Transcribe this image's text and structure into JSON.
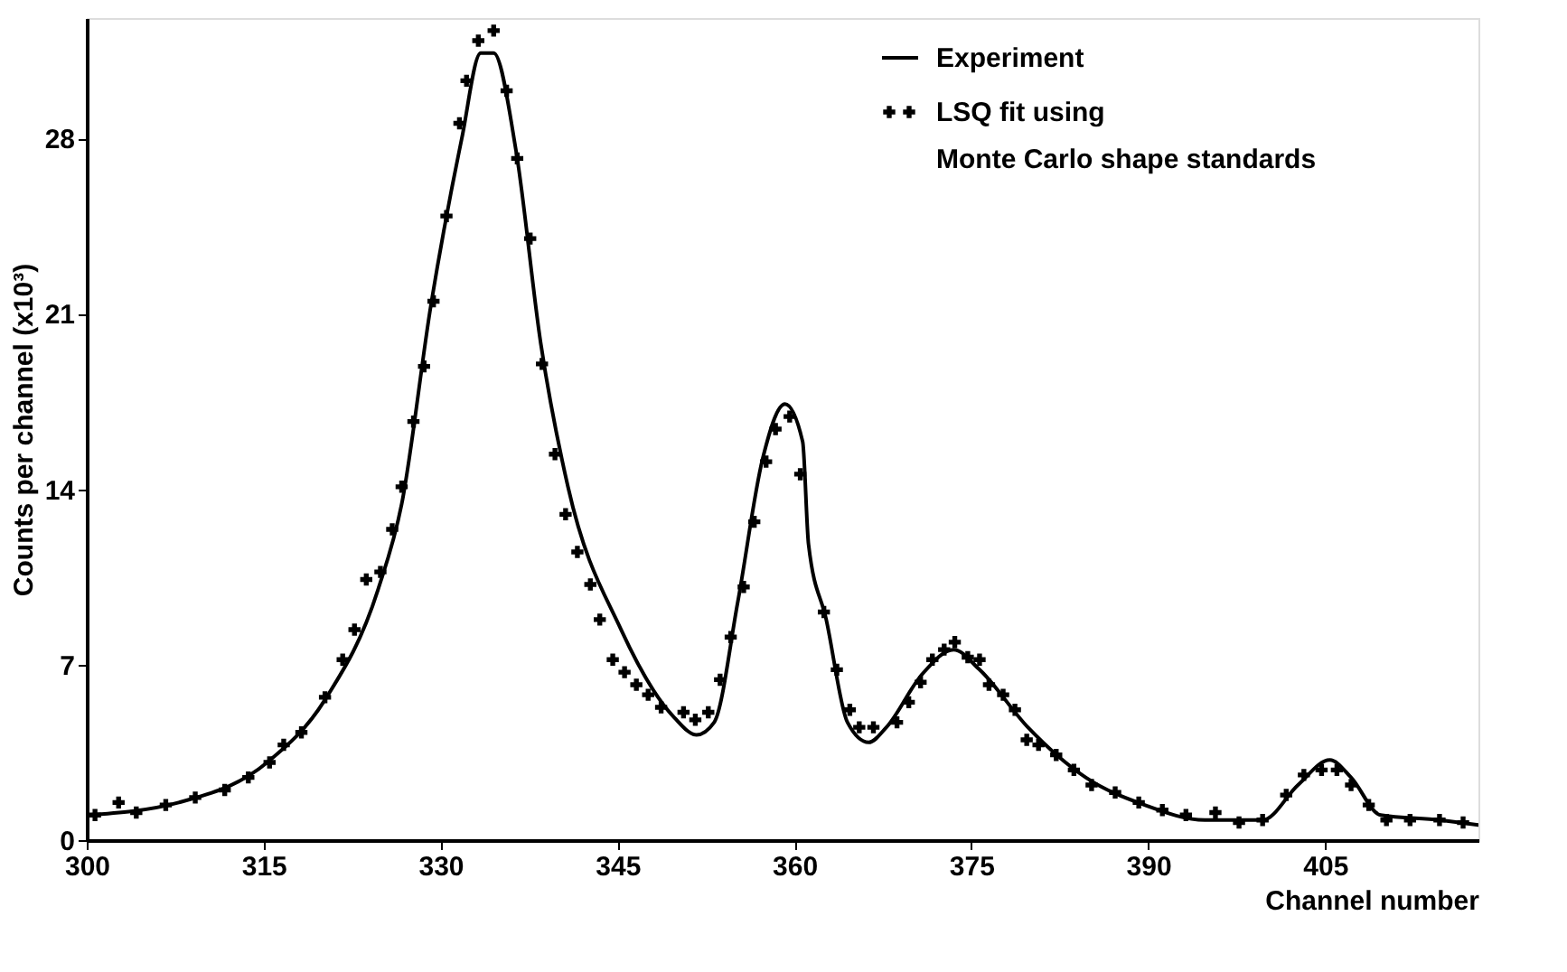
{
  "chart_data": {
    "type": "line",
    "xlabel": "Channel number",
    "ylabel": "Counts per channel (x10³)",
    "xlim": [
      300,
      418
    ],
    "xticks": [
      300,
      315,
      330,
      345,
      360,
      375,
      390,
      405
    ],
    "ylim": [
      0,
      32.8
    ],
    "yticks": [
      0,
      7,
      14,
      21,
      28
    ],
    "grid": false,
    "legend": "top right",
    "series": [
      {
        "name": "Experiment",
        "color": "#000000",
        "marker": "none",
        "line_style": "solid",
        "x": [
          300,
          307.8,
          315.3,
          320.2,
          324.7,
          326.7,
          329.2,
          331.8,
          333.4,
          334.5,
          336.4,
          338.5,
          340.8,
          345.3,
          349.8,
          351.7,
          353.2,
          355.2,
          357.3,
          359.2,
          360.7,
          361.2,
          362.7,
          364.5,
          366.3,
          367.8,
          370.8,
          373.5,
          375.7,
          379.8,
          384.7,
          389.7,
          394.8,
          399.7,
          402.7,
          405.4,
          407.2,
          409.7,
          414.7,
          418
        ],
        "values": [
          1.0,
          1.5,
          3.1,
          5.6,
          10.0,
          13.4,
          21.4,
          28.0,
          31.4,
          31.4,
          27.5,
          19.8,
          14.1,
          8.4,
          4.9,
          4.2,
          4.7,
          9.5,
          15.2,
          17.4,
          15.9,
          11.8,
          8.8,
          4.7,
          3.9,
          4.5,
          6.6,
          7.6,
          6.8,
          4.5,
          2.5,
          1.4,
          0.8,
          0.8,
          2.2,
          3.2,
          2.5,
          1.0,
          0.8,
          0.6
        ]
      },
      {
        "name": "LSQ fit using Monte Carlo shape standards",
        "type": "scatter",
        "color": "#000000",
        "marker": "cross",
        "x": [
          300.7,
          302.7,
          304.2,
          306.7,
          309.2,
          311.7,
          313.7,
          315.5,
          316.7,
          318.2,
          320.2,
          321.7,
          322.7,
          323.7,
          324.9,
          325.9,
          326.7,
          327.7,
          328.6,
          329.4,
          330.5,
          331.6,
          332.2,
          333.2,
          334.5,
          335.6,
          336.5,
          337.6,
          338.6,
          339.7,
          340.6,
          341.6,
          342.7,
          343.5,
          344.6,
          345.6,
          346.6,
          347.6,
          348.7,
          350.6,
          351.6,
          352.7,
          353.7,
          354.6,
          355.7,
          356.6,
          357.6,
          358.4,
          359.6,
          360.5,
          362.5,
          363.6,
          364.7,
          365.5,
          366.7,
          368.7,
          369.7,
          370.7,
          371.7,
          372.7,
          373.6,
          374.7,
          375.7,
          376.5,
          377.7,
          378.7,
          379.7,
          380.7,
          382.2,
          383.7,
          385.2,
          387.2,
          389.2,
          391.2,
          393.2,
          395.7,
          397.7,
          399.7,
          401.7,
          403.2,
          404.7,
          406.0,
          407.2,
          408.7,
          410.2,
          412.2,
          414.7,
          416.7
        ],
        "values": [
          1.0,
          1.5,
          1.1,
          1.4,
          1.7,
          2.0,
          2.5,
          3.1,
          3.8,
          4.3,
          5.7,
          7.2,
          8.4,
          10.4,
          10.7,
          12.4,
          14.1,
          16.7,
          18.9,
          21.5,
          24.9,
          28.6,
          30.3,
          31.9,
          32.3,
          29.9,
          27.2,
          24.0,
          19.0,
          15.4,
          13.0,
          11.5,
          10.2,
          8.8,
          7.2,
          6.7,
          6.2,
          5.8,
          5.3,
          5.1,
          4.8,
          5.1,
          6.4,
          8.1,
          10.1,
          12.7,
          15.1,
          16.4,
          16.9,
          14.6,
          9.1,
          6.8,
          5.2,
          4.5,
          4.5,
          4.7,
          5.5,
          6.3,
          7.2,
          7.6,
          7.9,
          7.3,
          7.2,
          6.2,
          5.8,
          5.2,
          4.0,
          3.8,
          3.4,
          2.8,
          2.2,
          1.9,
          1.5,
          1.2,
          1.0,
          1.1,
          0.7,
          0.8,
          1.8,
          2.6,
          2.8,
          2.8,
          2.2,
          1.4,
          0.8,
          0.8,
          0.8,
          0.7
        ]
      }
    ]
  }
}
